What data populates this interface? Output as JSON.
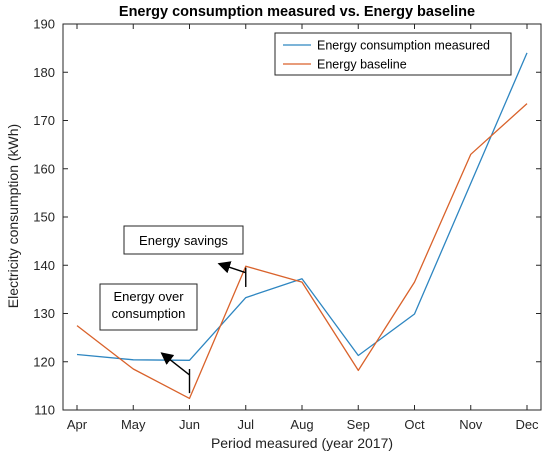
{
  "chart_data": {
    "type": "line",
    "title": "Energy consumption measured vs. Energy baseline",
    "xlabel": "Period measured (year 2017)",
    "ylabel": "Electricity consumption (kWh)",
    "categories": [
      "Apr",
      "May",
      "Jun",
      "Jul",
      "Aug",
      "Sep",
      "Oct",
      "Nov",
      "Dec"
    ],
    "ylim": [
      110,
      190
    ],
    "yticks": [
      110,
      120,
      130,
      140,
      150,
      160,
      170,
      180,
      190
    ],
    "grid": false,
    "legend_position": "top-right",
    "series": [
      {
        "name": "Energy consumption measured",
        "color": "#2e86c1",
        "values": [
          121.5,
          120.4,
          120.3,
          133.3,
          137.2,
          121.3,
          129.9,
          157.0,
          184.0
        ]
      },
      {
        "name": "Energy baseline",
        "color": "#d9622b",
        "values": [
          127.5,
          118.5,
          112.4,
          139.8,
          136.5,
          118.2,
          136.5,
          163.0,
          173.5
        ]
      }
    ],
    "annotations": [
      {
        "text": "Energy savings",
        "category": "Jul",
        "from_value": 135.5,
        "to_value": 139.5
      },
      {
        "text": "Energy over\nconsumption",
        "category": "Jun",
        "from_value": 113.5,
        "to_value": 116.0
      }
    ]
  }
}
